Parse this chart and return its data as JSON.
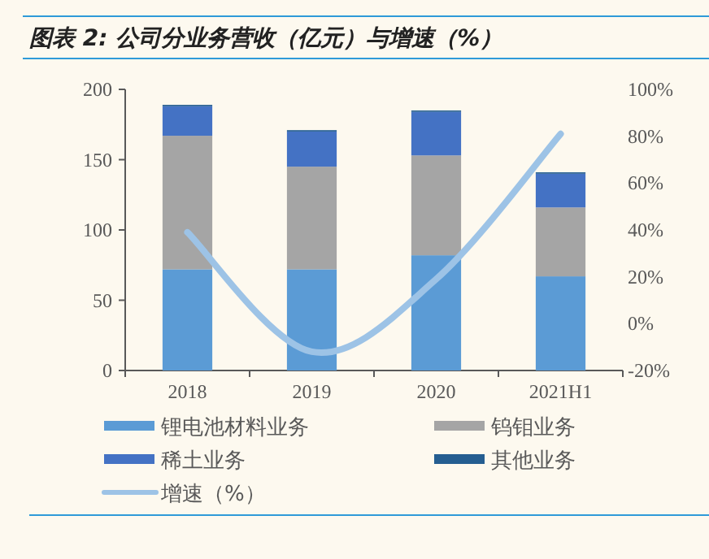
{
  "chart_data": {
    "type": "bar",
    "title": "图表 2: 公司分业务营收（亿元）与增速（%）",
    "categories": [
      "2018",
      "2019",
      "2020",
      "2021H1"
    ],
    "stacked": true,
    "series": [
      {
        "name": "锂电池材料业务",
        "color": "#5b9bd5",
        "values": [
          72,
          72,
          82,
          67
        ]
      },
      {
        "name": "钨钼业务",
        "color": "#a5a5a5",
        "values": [
          95,
          73,
          71,
          49
        ]
      },
      {
        "name": "稀土业务",
        "color": "#4472c4",
        "values": [
          21,
          25,
          31,
          24
        ]
      },
      {
        "name": "其他业务",
        "color": "#255e91",
        "values": [
          1,
          1,
          1,
          1
        ]
      },
      {
        "name": "增速（%）",
        "type": "line",
        "axis": "y2",
        "color": "#9dc3e6",
        "values": [
          39,
          -12,
          19,
          81
        ]
      }
    ],
    "ylim": [
      0,
      200
    ],
    "yticks": [
      0,
      50,
      100,
      150,
      200
    ],
    "y2lim": [
      -20,
      100
    ],
    "y2ticks": [
      {
        "value": -20,
        "label": "-20%"
      },
      {
        "value": 0,
        "label": "0%"
      },
      {
        "value": 20,
        "label": "20%"
      },
      {
        "value": 40,
        "label": "40%"
      },
      {
        "value": 60,
        "label": "60%"
      },
      {
        "value": 80,
        "label": "80%"
      },
      {
        "value": 100,
        "label": "100%"
      }
    ],
    "legend": "bottom",
    "grid": false,
    "line_style": "solid",
    "marker": "none"
  }
}
